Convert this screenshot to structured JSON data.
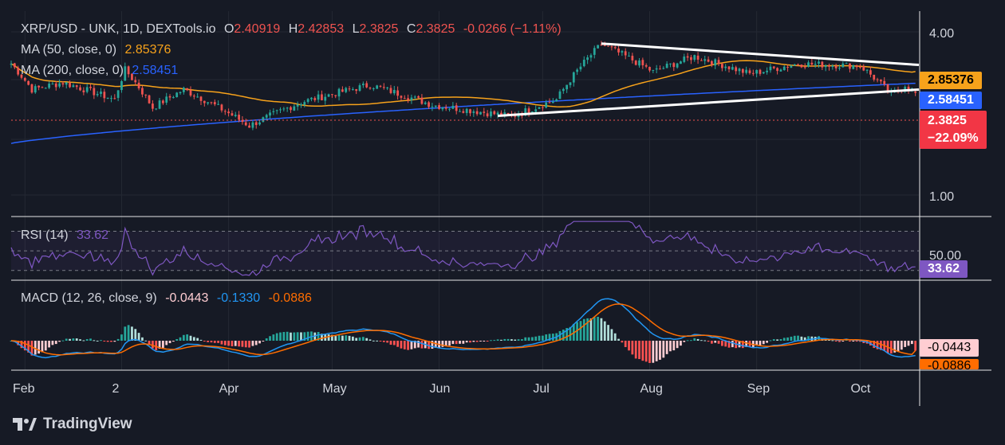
{
  "legend": {
    "symbol": "XRP/USD - UNK, 1D, DEXTools.io",
    "open_label": "O",
    "open": "2.40919",
    "high_label": "H",
    "high": "2.42853",
    "low_label": "L",
    "low": "2.3825",
    "close_label": "C",
    "close": "2.3825",
    "change": "-0.0266 (−1.11%)",
    "ma50_label": "MA (50, close, 0)",
    "ma50_value": "2.85376",
    "ma200_label": "MA (200, close, 0)",
    "ma200_value": "2.58451",
    "rsi_label": "RSI (14)",
    "rsi_value": "33.62",
    "macd_label": "MACD (12, 26, close, 9)",
    "macd_hist": "-0.0443",
    "macd_line": "-0.1330",
    "macd_signal": "-0.0886"
  },
  "price_axis": {
    "ticks": [
      "4.00",
      "1.00"
    ]
  },
  "rsi_axis": {
    "ticks": [
      "50.00"
    ]
  },
  "tags": {
    "ma50": "2.85376",
    "ma200": "2.58451",
    "price": "2.3825",
    "price_change": "−22.09%",
    "rsi": "33.62",
    "macd_hist": "-0.0443",
    "macd_signal": "-0.0886"
  },
  "x_axis": {
    "labels": [
      "Feb",
      "2",
      "Apr",
      "May",
      "Jun",
      "Jul",
      "Aug",
      "Sep",
      "Oct"
    ]
  },
  "brand": "TradingView",
  "colors": {
    "background": "#161a25",
    "up": "#26a69a",
    "down": "#ef5350",
    "ma50": "#f7a21b",
    "ma200": "#2962ff",
    "rsi": "#7e57c2",
    "macd": "#2196f3",
    "signal": "#ff6d00",
    "trendline": "#ffffff"
  },
  "chart_data": [
    {
      "type": "candlestick",
      "title": "XRP/USD - UNK, 1D, DEXTools.io",
      "scale": "log",
      "ylim": [
        0.95,
        4.3
      ],
      "x_range": [
        "2025-01-28",
        "2025-10-18"
      ],
      "x_ticks": [
        "Feb",
        "2",
        "Apr",
        "May",
        "Jun",
        "Jul",
        "Aug",
        "Sep",
        "Oct"
      ],
      "close_path": [
        [
          "2025-01-28",
          3.05
        ],
        [
          "2025-02-03",
          2.45
        ],
        [
          "2025-02-12",
          2.6
        ],
        [
          "2025-02-27",
          2.25
        ],
        [
          "2025-03-02",
          2.9
        ],
        [
          "2025-03-10",
          2.1
        ],
        [
          "2025-03-19",
          2.45
        ],
        [
          "2025-04-07",
          1.8
        ],
        [
          "2025-04-22",
          2.2
        ],
        [
          "2025-05-12",
          2.55
        ],
        [
          "2025-05-30",
          2.15
        ],
        [
          "2025-06-22",
          1.95
        ],
        [
          "2025-07-05",
          2.25
        ],
        [
          "2025-07-18",
          3.6
        ],
        [
          "2025-08-02",
          2.85
        ],
        [
          "2025-08-14",
          3.25
        ],
        [
          "2025-08-30",
          2.8
        ],
        [
          "2025-09-13",
          3.05
        ],
        [
          "2025-10-01",
          3.0
        ],
        [
          "2025-10-10",
          2.35
        ],
        [
          "2025-10-14",
          2.55
        ],
        [
          "2025-10-17",
          2.3825
        ]
      ],
      "last": {
        "open": 2.40919,
        "high": 2.42853,
        "low": 2.3825,
        "close": 2.3825
      },
      "series": [
        {
          "name": "MA (50, close, 0)",
          "last": 2.85376
        },
        {
          "name": "MA (200, close, 0)",
          "last": 2.58451
        }
      ],
      "trendlines": [
        {
          "from": [
            "2025-07-18",
            3.62
          ],
          "to": [
            "2025-10-18",
            3.02
          ]
        },
        {
          "from": [
            "2025-06-18",
            1.96
          ],
          "to": [
            "2025-10-18",
            2.45
          ]
        }
      ]
    },
    {
      "type": "line",
      "title": "RSI (14)",
      "ylim": [
        20,
        85
      ],
      "y_ticks": [
        50
      ],
      "bands": [
        70,
        50,
        30
      ],
      "series": [
        {
          "name": "RSI (14)",
          "last": 33.62
        }
      ]
    },
    {
      "type": "bar+line",
      "title": "MACD (12, 26, close, 9)",
      "series": [
        {
          "name": "Histogram",
          "last": -0.0443
        },
        {
          "name": "MACD",
          "last": -0.133
        },
        {
          "name": "Signal",
          "last": -0.0886
        }
      ]
    }
  ]
}
